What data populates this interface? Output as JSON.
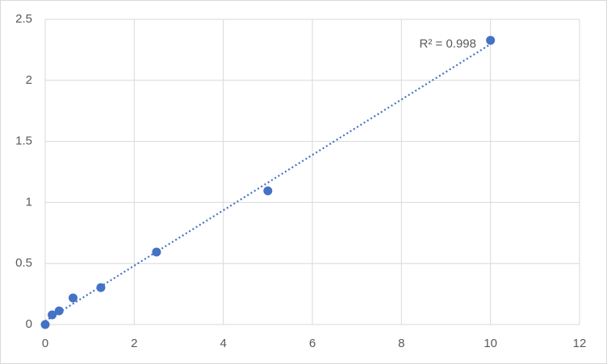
{
  "chart_data": {
    "type": "scatter",
    "x": [
      0,
      0.156,
      0.3125,
      0.625,
      1.25,
      2.5,
      5,
      10
    ],
    "values": [
      0,
      0.079,
      0.112,
      0.218,
      0.303,
      0.594,
      1.095,
      2.328
    ],
    "color": "#4472c4",
    "xlim": [
      0,
      12
    ],
    "xticks": [
      0,
      2,
      4,
      6,
      8,
      10,
      12
    ],
    "ylim": [
      0,
      2.5
    ],
    "yticks": [
      0,
      0.5,
      1,
      1.5,
      2,
      2.5
    ],
    "grid": true,
    "trendline": "linear",
    "annotation": "R² = 0.998"
  }
}
